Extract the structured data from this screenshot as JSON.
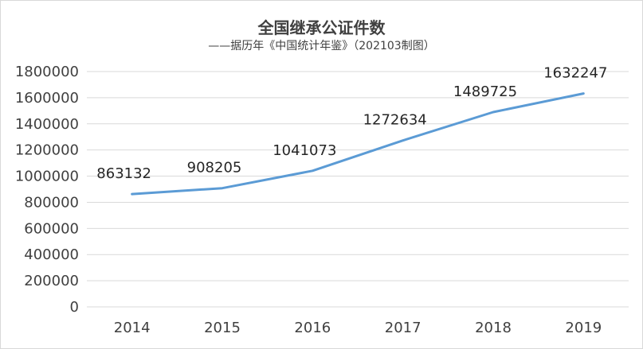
{
  "chart_data": {
    "type": "line",
    "title": "全国继承公证件数",
    "subtitle": "——据历年《中国统计年鉴》（202103制图）",
    "xlabel": "",
    "ylabel": "",
    "categories": [
      "2014",
      "2015",
      "2016",
      "2017",
      "2018",
      "2019"
    ],
    "series": [
      {
        "values": [
          863132,
          908205,
          1041073,
          1272634,
          1489725,
          1632247
        ]
      }
    ],
    "ylim": [
      0,
      1800000
    ],
    "yticks": [
      0,
      200000,
      400000,
      600000,
      800000,
      1000000,
      1200000,
      1400000,
      1600000,
      1800000
    ],
    "grid": true,
    "legend": "none",
    "line_color": "#5b9bd5",
    "grid_color": "#d9d9d9"
  }
}
